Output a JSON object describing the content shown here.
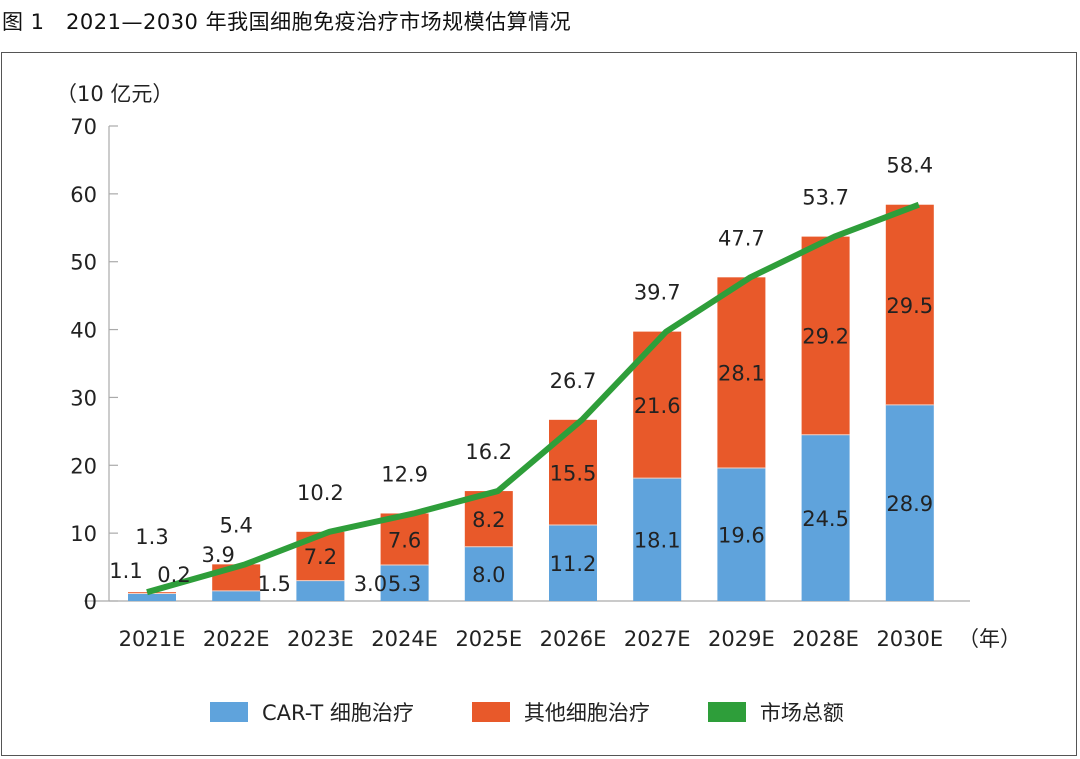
{
  "figure_title": "图 1　2021—2030 年我国细胞免疫治疗市场规模估算情况",
  "colors": {
    "cart": "#5FA3DC",
    "other": "#E8592A",
    "total": "#2E9E3A",
    "axis": "#AAAAAA"
  },
  "chart_data": {
    "type": "bar",
    "subtype": "stacked-bar-with-line",
    "title": "2021—2030 年我国细胞免疫治疗市场规模估算情况",
    "ylabel": "（10 亿元）",
    "xlabel": "（年）",
    "ylim": [
      0,
      70
    ],
    "yticks": [
      0,
      10,
      20,
      30,
      40,
      50,
      60,
      70
    ],
    "grid": false,
    "legend_position": "bottom",
    "categories": [
      "2021E",
      "2022E",
      "2023E",
      "2024E",
      "2025E",
      "2026E",
      "2027E",
      "2029E",
      "2028E",
      "2030E"
    ],
    "series": [
      {
        "name": "CAR-T 细胞治疗",
        "kind": "bar",
        "values": [
          1.1,
          1.5,
          3.0,
          5.3,
          8.0,
          11.2,
          18.1,
          19.6,
          24.5,
          28.9
        ]
      },
      {
        "name": "其他细胞治疗",
        "kind": "bar",
        "values": [
          0.2,
          3.9,
          7.2,
          7.6,
          8.2,
          15.5,
          21.6,
          28.1,
          29.2,
          29.5
        ]
      },
      {
        "name": "市场总额",
        "kind": "line",
        "values": [
          1.3,
          5.4,
          10.2,
          12.9,
          16.2,
          26.7,
          39.7,
          47.7,
          53.7,
          58.4
        ]
      }
    ]
  },
  "legend": [
    {
      "label": "CAR-T 细胞治疗",
      "color_key": "cart"
    },
    {
      "label": "其他细胞治疗",
      "color_key": "other"
    },
    {
      "label": "市场总额",
      "color_key": "total"
    }
  ]
}
